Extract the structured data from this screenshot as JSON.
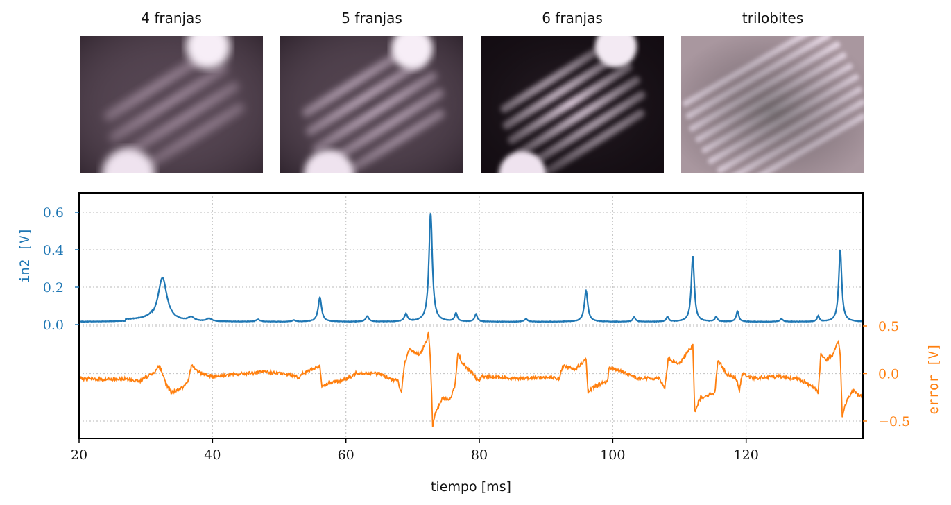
{
  "panels": [
    {
      "title": "4 franjas"
    },
    {
      "title": "5 franjas"
    },
    {
      "title": "6 franjas"
    },
    {
      "title": "trilobites"
    }
  ],
  "colors": {
    "in2": "#1f77b4",
    "error": "#ff7f0e",
    "grid": "#c8c8c8",
    "axis": "#000000"
  },
  "chart_data": {
    "type": "line",
    "xlabel": "tiempo [ms]",
    "ylabel_left": "in2 [V]",
    "ylabel_right": "error [V]",
    "xlim": [
      20,
      137.5
    ],
    "ylim_left": [
      0,
      0.68
    ],
    "ylim_right": [
      -0.68,
      0.5
    ],
    "xticks": [
      20,
      40,
      60,
      80,
      100,
      120
    ],
    "xtick_labels": [
      "20",
      "40",
      "60",
      "80",
      "100",
      "120"
    ],
    "yticks_left": [
      0.0,
      0.2,
      0.4,
      0.6
    ],
    "ytick_labels_left": [
      "0.0",
      "0.2",
      "0.4",
      "0.6"
    ],
    "yticks_right": [
      -0.5,
      0.0,
      0.5
    ],
    "ytick_labels_right": [
      "−0.5",
      "0.0",
      "0.5"
    ],
    "grid": true,
    "series": [
      {
        "name": "in2",
        "axis": "left",
        "baseline": 0.015,
        "peaks": [
          {
            "x": 32.5,
            "amp": 0.235,
            "width": 1.2
          },
          {
            "x": 36.8,
            "amp": 0.02,
            "width": 0.8
          },
          {
            "x": 39.5,
            "amp": 0.015,
            "width": 0.7
          },
          {
            "x": 46.8,
            "amp": 0.012,
            "width": 0.5
          },
          {
            "x": 52.2,
            "amp": 0.008,
            "width": 0.4
          },
          {
            "x": 56.1,
            "amp": 0.13,
            "width": 0.45
          },
          {
            "x": 63.2,
            "amp": 0.03,
            "width": 0.4
          },
          {
            "x": 69.0,
            "amp": 0.04,
            "width": 0.4
          },
          {
            "x": 72.7,
            "amp": 0.58,
            "width": 0.45
          },
          {
            "x": 76.5,
            "amp": 0.045,
            "width": 0.35
          },
          {
            "x": 79.5,
            "amp": 0.04,
            "width": 0.35
          },
          {
            "x": 87.0,
            "amp": 0.015,
            "width": 0.4
          },
          {
            "x": 96.0,
            "amp": 0.165,
            "width": 0.45
          },
          {
            "x": 103.2,
            "amp": 0.025,
            "width": 0.35
          },
          {
            "x": 108.2,
            "amp": 0.025,
            "width": 0.35
          },
          {
            "x": 112.0,
            "amp": 0.35,
            "width": 0.4
          },
          {
            "x": 115.5,
            "amp": 0.025,
            "width": 0.35
          },
          {
            "x": 118.7,
            "amp": 0.055,
            "width": 0.35
          },
          {
            "x": 125.3,
            "amp": 0.015,
            "width": 0.4
          },
          {
            "x": 130.8,
            "amp": 0.03,
            "width": 0.3
          },
          {
            "x": 134.1,
            "amp": 0.385,
            "width": 0.4
          }
        ]
      },
      {
        "name": "error",
        "axis": "right",
        "points": [
          [
            20.0,
            -0.05
          ],
          [
            23.0,
            -0.06
          ],
          [
            27.0,
            -0.06
          ],
          [
            29.0,
            -0.08
          ],
          [
            31.0,
            0.0
          ],
          [
            32.0,
            0.08
          ],
          [
            33.0,
            -0.1
          ],
          [
            33.8,
            -0.2
          ],
          [
            35.5,
            -0.15
          ],
          [
            36.3,
            -0.1
          ],
          [
            36.9,
            0.1
          ],
          [
            37.8,
            0.02
          ],
          [
            40.0,
            -0.03
          ],
          [
            45.0,
            0.0
          ],
          [
            48.0,
            0.02
          ],
          [
            50.0,
            0.0
          ],
          [
            52.5,
            -0.02
          ],
          [
            53.0,
            -0.05
          ],
          [
            53.5,
            0.0
          ],
          [
            55.8,
            0.07
          ],
          [
            56.1,
            0.08
          ],
          [
            56.4,
            -0.13
          ],
          [
            57.5,
            -0.1
          ],
          [
            59.5,
            -0.07
          ],
          [
            61.0,
            -0.03
          ],
          [
            61.5,
            0.01
          ],
          [
            65.0,
            0.0
          ],
          [
            66.5,
            -0.05
          ],
          [
            67.8,
            -0.08
          ],
          [
            68.3,
            -0.2
          ],
          [
            68.8,
            0.1
          ],
          [
            69.5,
            0.25
          ],
          [
            71.0,
            0.2
          ],
          [
            72.0,
            0.32
          ],
          [
            72.4,
            0.43
          ],
          [
            72.7,
            0.1
          ],
          [
            73.0,
            -0.55
          ],
          [
            73.5,
            -0.4
          ],
          [
            74.5,
            -0.25
          ],
          [
            75.5,
            -0.28
          ],
          [
            76.3,
            -0.15
          ],
          [
            76.8,
            0.22
          ],
          [
            77.5,
            0.1
          ],
          [
            79.0,
            0.0
          ],
          [
            79.8,
            -0.08
          ],
          [
            80.5,
            -0.03
          ],
          [
            85.0,
            -0.05
          ],
          [
            90.0,
            -0.04
          ],
          [
            92.0,
            -0.05
          ],
          [
            92.5,
            0.08
          ],
          [
            94.5,
            0.05
          ],
          [
            95.5,
            0.12
          ],
          [
            96.0,
            0.15
          ],
          [
            96.3,
            -0.2
          ],
          [
            97.0,
            -0.15
          ],
          [
            98.5,
            -0.1
          ],
          [
            99.2,
            -0.08
          ],
          [
            99.5,
            0.07
          ],
          [
            102.0,
            0.0
          ],
          [
            103.8,
            -0.05
          ],
          [
            107.0,
            -0.05
          ],
          [
            107.8,
            -0.15
          ],
          [
            108.3,
            0.15
          ],
          [
            110.0,
            0.1
          ],
          [
            111.5,
            0.25
          ],
          [
            112.0,
            0.3
          ],
          [
            112.3,
            -0.4
          ],
          [
            113.0,
            -0.27
          ],
          [
            114.0,
            -0.23
          ],
          [
            115.3,
            -0.2
          ],
          [
            115.8,
            0.15
          ],
          [
            117.0,
            0.0
          ],
          [
            118.5,
            -0.05
          ],
          [
            119.0,
            -0.18
          ],
          [
            119.4,
            0.0
          ],
          [
            121.0,
            -0.05
          ],
          [
            125.0,
            -0.03
          ],
          [
            128.0,
            -0.06
          ],
          [
            130.3,
            -0.15
          ],
          [
            130.8,
            -0.2
          ],
          [
            131.2,
            0.2
          ],
          [
            132.0,
            0.14
          ],
          [
            133.0,
            0.2
          ],
          [
            133.8,
            0.35
          ],
          [
            134.1,
            0.2
          ],
          [
            134.4,
            -0.45
          ],
          [
            135.0,
            -0.3
          ],
          [
            136.0,
            -0.18
          ],
          [
            137.5,
            -0.25
          ]
        ]
      }
    ]
  }
}
